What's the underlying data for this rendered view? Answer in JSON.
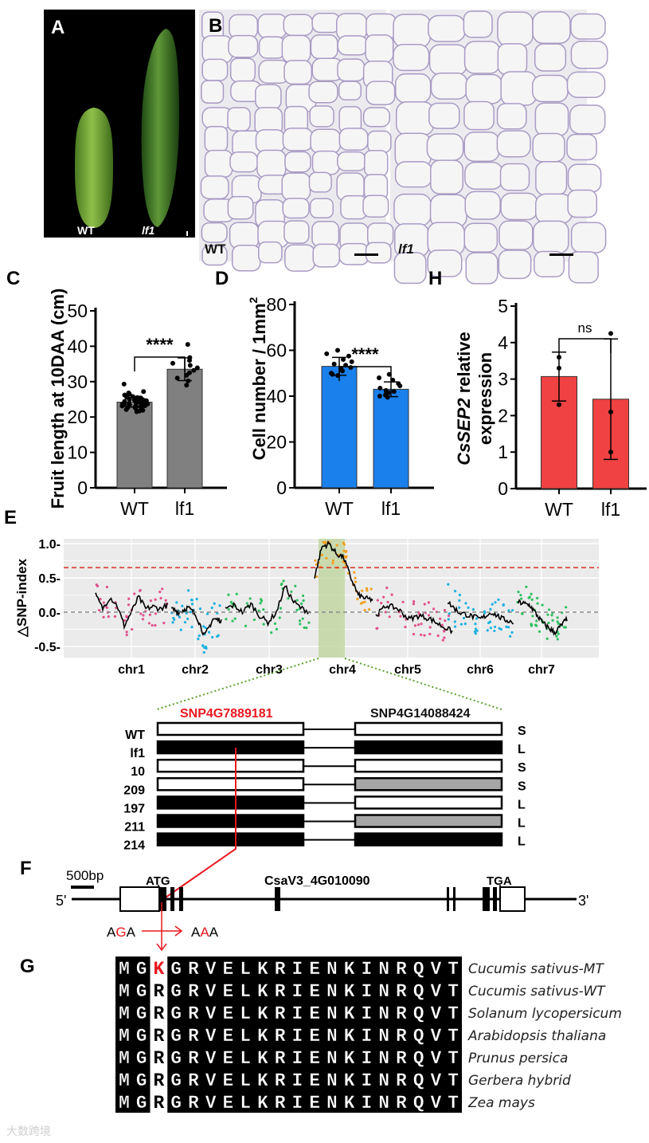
{
  "panel_labels": {
    "a": "A",
    "b": "B",
    "c": "C",
    "d": "D",
    "h": "H",
    "e": "E",
    "f": "F",
    "g": "G"
  },
  "photo_a": {
    "wt_label": "WT",
    "lf1_label": "lf1"
  },
  "photo_b": {
    "wt_label": "WT",
    "lf1_label": "lf1"
  },
  "chart_data": [
    {
      "id": "C",
      "type": "bar",
      "categories": [
        "WT",
        "lf1"
      ],
      "ylabel": "Fruit length at 10DAA (cm)",
      "ylim": [
        0,
        50
      ],
      "yticks": [
        0,
        10,
        20,
        30,
        40,
        50
      ],
      "values": [
        24.2,
        33.5
      ],
      "errors": [
        1.4,
        3.2
      ],
      "significance": "****",
      "color": "#808080",
      "points": [
        [
          29.3,
          27.2,
          26.8,
          26.5,
          26.2,
          26.0,
          25.8,
          25.6,
          25.5,
          25.3,
          25.1,
          25.0,
          24.8,
          24.7,
          24.5,
          24.4,
          24.3,
          24.2,
          24.1,
          24.0,
          23.9,
          23.8,
          23.7,
          23.6,
          23.5,
          23.4,
          23.3,
          23.2,
          23.0,
          22.9,
          22.7,
          22.5,
          22.3,
          22.1,
          21.9,
          21.7,
          21.5,
          24.6,
          24.9,
          23.1,
          25.4,
          22.8
        ],
        [
          40.5,
          36.8,
          36.0,
          35.2,
          34.6,
          33.9,
          33.2,
          32.5,
          31.8,
          31.0,
          30.2,
          29.0
        ]
      ]
    },
    {
      "id": "D",
      "type": "bar",
      "categories": [
        "WT",
        "lf1"
      ],
      "ylabel": "Cell number / 1mm",
      "ylabel_sup": "2",
      "ylim": [
        0,
        80
      ],
      "yticks": [
        0,
        20,
        40,
        60,
        80
      ],
      "values": [
        53,
        43
      ],
      "errors": [
        3.9,
        3.2
      ],
      "significance": "****",
      "color": "#1a80ec",
      "points": [
        [
          60,
          58.5,
          57.5,
          56,
          55,
          54,
          53.5,
          52.5,
          52,
          51,
          50,
          49.5,
          49
        ],
        [
          49.5,
          48,
          47,
          45.5,
          44.5,
          43.5,
          42.5,
          42,
          41.5,
          41,
          40.5,
          40,
          39.5
        ]
      ]
    },
    {
      "id": "H",
      "type": "bar",
      "categories": [
        "WT",
        "lf1"
      ],
      "ylabel_prefix": "Cs",
      "ylabel_gene": "SEP2",
      "ylabel_suffix": " relative",
      "ylabel_line2": "expression",
      "ylim": [
        0,
        5
      ],
      "yticks": [
        0,
        1,
        2,
        3,
        4,
        5
      ],
      "values": [
        3.07,
        2.45
      ],
      "errors": [
        0.67,
        1.65
      ],
      "significance": "ns",
      "color": "#f04242",
      "points": [
        [
          3.6,
          3.3,
          2.3
        ],
        [
          4.25,
          2.1,
          1.0
        ]
      ]
    },
    {
      "id": "E",
      "type": "scatter",
      "ylabel": "△SNP-index",
      "ylim": [
        -0.65,
        1.05
      ],
      "yticks": [
        1.0,
        0.5,
        0.0,
        -0.5
      ],
      "threshold": 0.65,
      "highlight_region": "chr4",
      "chromosomes": [
        {
          "name": "chr1",
          "color": "#e0508c",
          "smoothed": [
            0.25,
            0.05,
            0.22,
            0.1,
            -0.2,
            0.0,
            0.22,
            0.05,
            0.08,
            0.05,
            0.1
          ]
        },
        {
          "name": "chr2",
          "color": "#1ab0e0",
          "smoothed": [
            0.05,
            0.0,
            0.07,
            -0.05,
            -0.35,
            -0.1,
            -0.12
          ]
        },
        {
          "name": "chr3",
          "color": "#2ec060",
          "smoothed": [
            0.05,
            0.1,
            0.0,
            0.12,
            -0.05,
            -0.15,
            0.0,
            0.38,
            0.15,
            0.05,
            0.0
          ]
        },
        {
          "name": "chr4",
          "color": "#f0a020",
          "smoothed": [
            0.5,
            0.95,
            1.0,
            0.85,
            0.8,
            0.5,
            0.25,
            0.2,
            0.18
          ]
        },
        {
          "name": "chr5",
          "color": "#e0508c",
          "smoothed": [
            -0.05,
            0.1,
            0.05,
            -0.1,
            -0.05,
            -0.1,
            -0.2,
            -0.28
          ]
        },
        {
          "name": "chr6",
          "color": "#1ab0e0",
          "smoothed": [
            0.15,
            0.0,
            -0.05,
            -0.1,
            0.0,
            -0.1,
            -0.15
          ]
        },
        {
          "name": "chr7",
          "color": "#2ec060",
          "smoothed": [
            0.15,
            0.1,
            -0.15,
            -0.3,
            -0.1
          ]
        }
      ]
    }
  ],
  "haplotype": {
    "marker_left": "SNP4G7889181",
    "marker_right": "SNP4G14088424",
    "rows": [
      {
        "line": "WT",
        "left": "white",
        "right": "white",
        "phenotype": "S"
      },
      {
        "line": "lf1",
        "left": "black",
        "right": "black",
        "phenotype": "L"
      },
      {
        "line": "10",
        "left": "white",
        "right": "white",
        "phenotype": "S"
      },
      {
        "line": "209",
        "left": "white",
        "right": "gray",
        "phenotype": "S"
      },
      {
        "line": "197",
        "left": "black",
        "right": "white",
        "phenotype": "L"
      },
      {
        "line": "211",
        "left": "black",
        "right": "gray",
        "phenotype": "L"
      },
      {
        "line": "214",
        "left": "black",
        "right": "black",
        "phenotype": "L"
      }
    ]
  },
  "gene": {
    "scale": "500bp",
    "start_codon": "ATG",
    "stop_codon": "TGA",
    "name": "CsaV3_4G010090",
    "five": "5'",
    "three": "3'",
    "codon_wt": [
      "A",
      "G",
      "A"
    ],
    "codon_mt": [
      "A",
      "A",
      "A"
    ]
  },
  "alignment": {
    "rows": [
      {
        "seq": "MGKGRVELKRIENKINRQVT",
        "species": "Cucumis sativus-MT",
        "mutant": true
      },
      {
        "seq": "MGRGRVELKRIENKINRQVT",
        "species": "Cucumis sativus-WT"
      },
      {
        "seq": "MGRGRVELKRIENKINRQVT",
        "species": "Solanum lycopersicum"
      },
      {
        "seq": "MGRGRVELKRIENKINRQVT",
        "species": "Arabidopsis thaliana"
      },
      {
        "seq": "MGRGRVELKRIENKINRQVT",
        "species": "Prunus persica"
      },
      {
        "seq": "MGRGRVELKRIENKINRQVT",
        "species": "Gerbera hybrid"
      },
      {
        "seq": "MGRGRVELKRIENKINRQVT",
        "species": "Zea mays"
      }
    ]
  },
  "watermark": "大数跨境"
}
